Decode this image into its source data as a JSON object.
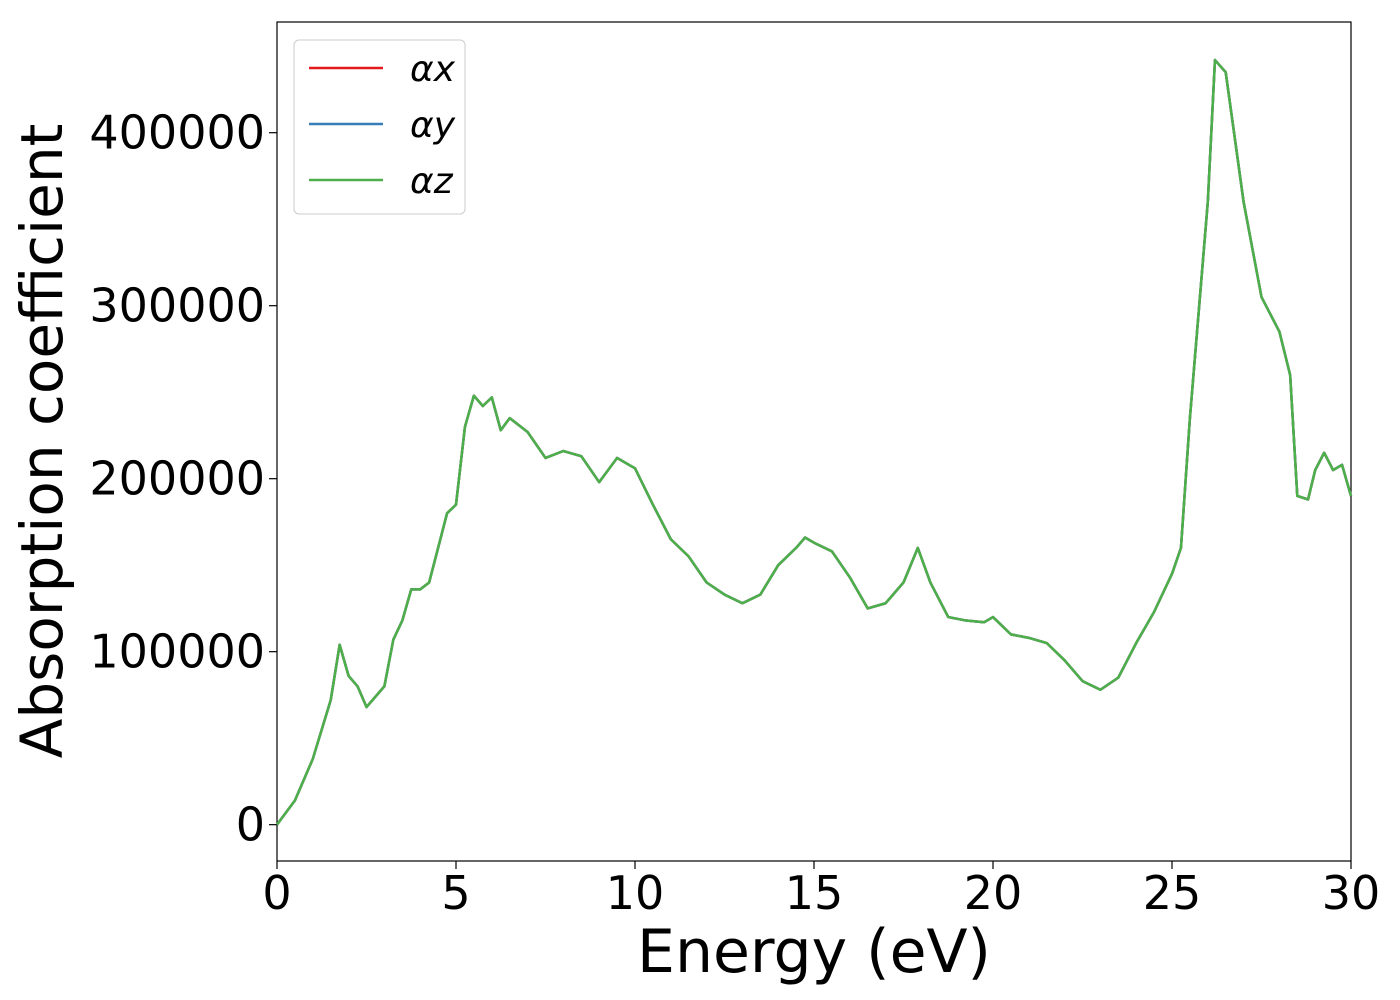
{
  "chart_data": {
    "type": "line",
    "xlabel": "Energy (eV)",
    "ylabel": "Absorption coefficient",
    "x": [
      0,
      0.5,
      1,
      1.5,
      1.75,
      2,
      2.25,
      2.5,
      3,
      3.25,
      3.5,
      3.75,
      4,
      4.25,
      4.5,
      4.75,
      5,
      5.25,
      5.5,
      5.75,
      6,
      6.25,
      6.5,
      7,
      7.5,
      8,
      8.5,
      9,
      9.5,
      10,
      10.5,
      11,
      11.5,
      12,
      12.5,
      13,
      13.5,
      14,
      14.5,
      14.75,
      15,
      15.5,
      16,
      16.5,
      17,
      17.5,
      17.9,
      18.25,
      18.75,
      19.25,
      19.75,
      20,
      20.5,
      21,
      21.5,
      22,
      22.5,
      23,
      23.5,
      24,
      24.5,
      25,
      25.25,
      25.5,
      26,
      26.2,
      26.5,
      27,
      27.5,
      28,
      28.3,
      28.5,
      28.8,
      29,
      29.25,
      29.5,
      29.75,
      30
    ],
    "series": [
      {
        "name": "αx",
        "color": "#e41a1c",
        "values": [
          0,
          14000,
          38000,
          72000,
          104000,
          86000,
          80000,
          68000,
          80000,
          107000,
          118000,
          136000,
          136000,
          140000,
          160000,
          180000,
          185000,
          230000,
          248000,
          242000,
          247000,
          228000,
          235000,
          227000,
          212000,
          216000,
          213000,
          198000,
          212000,
          206000,
          185000,
          165000,
          155000,
          140000,
          133000,
          128000,
          133000,
          150000,
          160000,
          166000,
          163000,
          158000,
          143000,
          125000,
          128000,
          140000,
          160000,
          140000,
          120000,
          118000,
          117000,
          120000,
          110000,
          108000,
          105000,
          95000,
          83000,
          78000,
          85000,
          105000,
          123000,
          145000,
          160000,
          235000,
          360000,
          442000,
          435000,
          360000,
          305000,
          285000,
          260000,
          190000,
          188000,
          205000,
          215000,
          205000,
          208000,
          190000
        ]
      },
      {
        "name": "αy",
        "color": "#377eb8",
        "values": [
          0,
          14000,
          38000,
          72000,
          104000,
          86000,
          80000,
          68000,
          80000,
          107000,
          118000,
          136000,
          136000,
          140000,
          160000,
          180000,
          185000,
          230000,
          248000,
          242000,
          247000,
          228000,
          235000,
          227000,
          212000,
          216000,
          213000,
          198000,
          212000,
          206000,
          185000,
          165000,
          155000,
          140000,
          133000,
          128000,
          133000,
          150000,
          160000,
          166000,
          163000,
          158000,
          143000,
          125000,
          128000,
          140000,
          160000,
          140000,
          120000,
          118000,
          117000,
          120000,
          110000,
          108000,
          105000,
          95000,
          83000,
          78000,
          85000,
          105000,
          123000,
          145000,
          160000,
          235000,
          360000,
          442000,
          435000,
          360000,
          305000,
          285000,
          260000,
          190000,
          188000,
          205000,
          215000,
          205000,
          208000,
          190000
        ]
      },
      {
        "name": "αz",
        "color": "#4daf4a",
        "values": [
          0,
          14000,
          38000,
          72000,
          104000,
          86000,
          80000,
          68000,
          80000,
          107000,
          118000,
          136000,
          136000,
          140000,
          160000,
          180000,
          185000,
          230000,
          248000,
          242000,
          247000,
          228000,
          235000,
          227000,
          212000,
          216000,
          213000,
          198000,
          212000,
          206000,
          185000,
          165000,
          155000,
          140000,
          133000,
          128000,
          133000,
          150000,
          160000,
          166000,
          163000,
          158000,
          143000,
          125000,
          128000,
          140000,
          160000,
          140000,
          120000,
          118000,
          117000,
          120000,
          110000,
          108000,
          105000,
          95000,
          83000,
          78000,
          85000,
          105000,
          123000,
          145000,
          160000,
          235000,
          360000,
          442000,
          435000,
          360000,
          305000,
          285000,
          260000,
          190000,
          188000,
          205000,
          215000,
          205000,
          208000,
          190000
        ]
      }
    ],
    "xlim": [
      0,
      30
    ],
    "xticks": [
      0,
      5,
      10,
      15,
      20,
      25,
      30
    ],
    "ylim": [
      -21000,
      464000
    ],
    "yticks": [
      0,
      100000,
      200000,
      300000,
      400000
    ],
    "legend": "upper-left"
  }
}
